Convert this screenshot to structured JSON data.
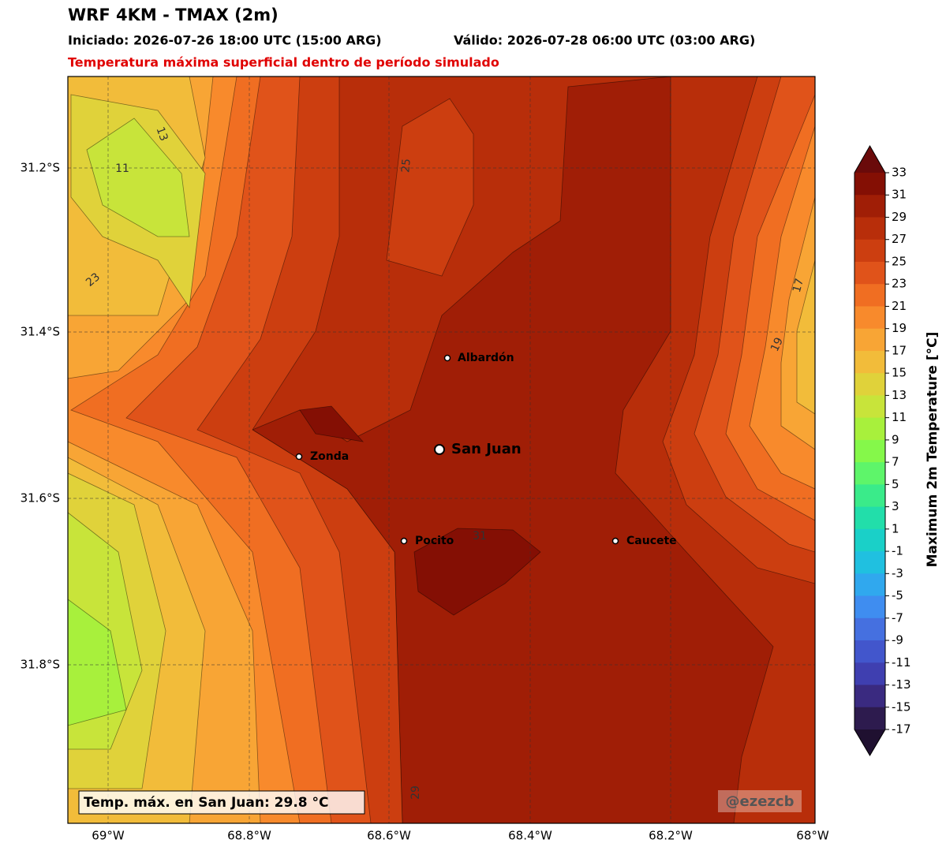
{
  "header": {
    "title": "WRF 4KM - TMAX (2m)",
    "init": "Iniciado: 2026-07-26 18:00 UTC (15:00 ARG)",
    "valid": "Válido: 2026-07-28 06:00 UTC (03:00 ARG)",
    "subtitle": "Temperatura máxima superficial dentro de período simulado"
  },
  "map": {
    "lat_labels": [
      "31.2°S",
      "31.4°S",
      "31.6°S",
      "31.8°S"
    ],
    "lon_labels": [
      "69°W",
      "68.8°W",
      "68.6°W",
      "68.4°W",
      "68.2°W",
      "68°W"
    ],
    "cities": [
      "Albardón",
      "San Juan",
      "Zonda",
      "Pocito",
      "Caucete"
    ],
    "contour_labels": [
      "13",
      "11",
      "23",
      "25",
      "19",
      "17",
      "31",
      "29"
    ],
    "info_box": "Temp. máx. en San Juan: 29.8 °C",
    "watermark": "@ezezcb"
  },
  "colorbar": {
    "label": "Maximum 2m Temperature [°C]",
    "ticks": [
      33,
      31,
      29,
      27,
      25,
      23,
      21,
      19,
      17,
      15,
      13,
      11,
      9,
      7,
      5,
      3,
      1,
      -1,
      -3,
      -5,
      -7,
      -9,
      -11,
      -13,
      -15,
      -17
    ],
    "colors": [
      "#840f04",
      "#a01e06",
      "#b82e0a",
      "#cc3e10",
      "#e0531a",
      "#f06e22",
      "#f88a2c",
      "#f8a535",
      "#f2bc3a",
      "#e0d23a",
      "#c8e43a",
      "#a8f03c",
      "#85f84a",
      "#5ef56a",
      "#3aeb8a",
      "#22deaa",
      "#1ad0c8",
      "#20c0e0",
      "#30a8ee",
      "#3f8df0",
      "#4570e0",
      "#4256cc",
      "#3f3fb0",
      "#3a2a80",
      "#2d1b4e"
    ],
    "over_color": "#6a0a0a",
    "under_color": "#1f1030"
  }
}
